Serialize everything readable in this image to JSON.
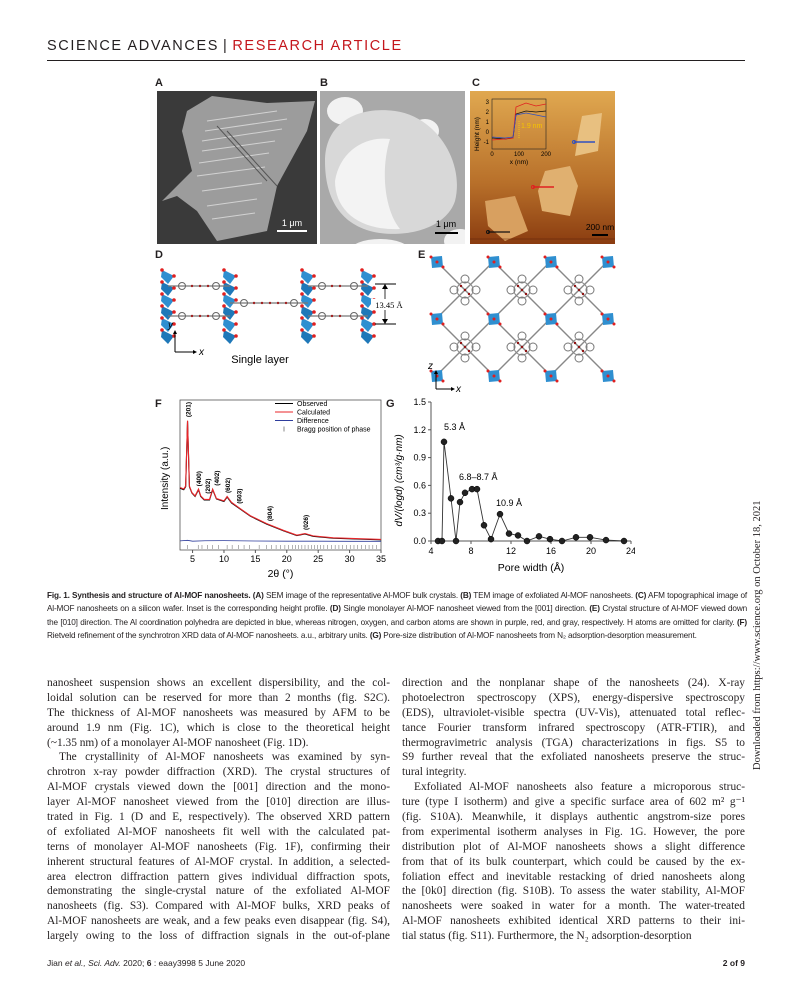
{
  "header": {
    "journal": "SCIENCE ADVANCES",
    "separator": "|",
    "section": "RESEARCH ARTICLE"
  },
  "colors": {
    "section_red": "#c4161c",
    "observed": "#000000",
    "calculated": "#e8262a",
    "difference": "#2e3d9c",
    "al_polyhedra": "#2f8fd0",
    "oxygen": "#e02020"
  },
  "figure": {
    "panel_labels": [
      "A",
      "B",
      "C",
      "D",
      "E",
      "F",
      "G"
    ],
    "a": {
      "scale_bar": "1 μm"
    },
    "b": {
      "scale_bar": "1 μm"
    },
    "c": {
      "scale_bar": "200 nm",
      "inset_ylabel": "Height (nm)",
      "inset_xlabel": "x (nm)",
      "inset_annotation": "1.9 nm",
      "inset_yticks": [
        "3",
        "2",
        "1",
        "0",
        "-1"
      ],
      "inset_xticks": [
        "0",
        "100",
        "200"
      ]
    },
    "d": {
      "dimension": "13.45 Å",
      "axis_y": "y",
      "axis_x": "x",
      "title": "Single layer"
    },
    "e": {
      "axis_z": "z",
      "axis_x": "x"
    }
  },
  "chart_data": [
    {
      "panel": "F",
      "type": "line",
      "xlabel": "2θ (°)",
      "ylabel": "Intensity (a.u.)",
      "xlim": [
        3,
        35
      ],
      "ylim": [
        -2,
        100
      ],
      "xticks": [
        5,
        10,
        15,
        20,
        25,
        30,
        35
      ],
      "legend": {
        "placement": "top-right",
        "entries": [
          "Observed",
          "Calculated",
          "Difference",
          "Bragg position of phase"
        ]
      },
      "series": [
        {
          "name": "Observed",
          "x": [
            3.0,
            3.6,
            3.9,
            4.2,
            4.5,
            4.9,
            5.4,
            5.95,
            6.3,
            6.85,
            7.7,
            8.2,
            8.8,
            10.0,
            10.5,
            11.2,
            12.3,
            14.2,
            16.8,
            19.5,
            21.6,
            22.9,
            24.2,
            27.4,
            35
          ],
          "y": [
            40,
            39,
            41,
            85.6,
            41,
            36.7,
            34.4,
            39,
            34.4,
            32,
            32,
            39,
            32.7,
            31,
            34,
            30,
            26.7,
            21,
            15.6,
            11,
            7.8,
            8.9,
            7.3,
            6,
            4.9
          ]
        },
        {
          "name": "Calculated",
          "x": [
            3.0,
            3.6,
            3.9,
            4.2,
            4.5,
            4.9,
            5.4,
            5.95,
            6.3,
            6.85,
            7.7,
            8.2,
            8.8,
            10.0,
            10.5,
            11.2,
            12.3,
            14.2,
            16.8,
            19.5,
            21.6,
            22.9,
            24.2,
            27.4,
            35
          ],
          "y": [
            40.5,
            39.5,
            41.5,
            86,
            41.5,
            37,
            34.8,
            39.4,
            34.8,
            32.4,
            32.4,
            39.4,
            33,
            31.4,
            34.4,
            30.4,
            27,
            21.3,
            15.9,
            11.3,
            8.1,
            9.2,
            7.6,
            6.3,
            5.2
          ]
        },
        {
          "name": "Difference",
          "x": [
            3.0,
            4.2,
            5,
            7,
            10,
            15,
            20,
            25,
            30,
            35
          ],
          "y": [
            4.2,
            4.6,
            4.0,
            4.3,
            4.4,
            4.1,
            4.0,
            4.0,
            3.9,
            3.9
          ]
        }
      ],
      "bragg_positions": [
        4.2,
        5.9,
        6.5,
        7.4,
        8.2,
        9.1,
        10.5,
        11.3,
        12.3,
        13.2,
        14.1,
        15.6,
        16.8,
        17.6,
        18.3,
        19.0,
        19.7,
        20.3,
        20.9,
        21.4,
        21.9,
        22.4,
        22.9,
        23.4,
        23.9,
        24.4,
        24.9,
        25.4,
        25.9,
        26.5,
        27.1,
        27.7,
        28.3,
        28.9,
        29.5,
        30.1,
        30.7,
        31.3,
        31.9,
        32.5,
        33.1,
        33.7,
        34.3
      ],
      "peak_labels": [
        {
          "text": "(201)",
          "x": 4.2
        },
        {
          "text": "(400)",
          "x": 5.9
        },
        {
          "text": "(202)",
          "x": 6.5
        },
        {
          "text": "(402)",
          "x": 8.2
        },
        {
          "text": "(602)",
          "x": 10.5
        },
        {
          "text": "(603)",
          "x": 12.3
        },
        {
          "text": "(804)",
          "x": 17.2
        },
        {
          "text": "(026)",
          "x": 22.9
        }
      ]
    },
    {
      "panel": "G",
      "type": "line",
      "xlabel": "Pore width (Å)",
      "ylabel": "dV/(logd) (cm³/g·nm)",
      "xlim": [
        4,
        24
      ],
      "ylim": [
        0,
        1.5
      ],
      "xticks": [
        4,
        8,
        12,
        16,
        20,
        24
      ],
      "yticks": [
        "0.0",
        "0.3",
        "0.6",
        "0.9",
        "1.2",
        "1.5"
      ],
      "x": [
        4.7,
        5.1,
        5.3,
        6.0,
        6.5,
        6.9,
        7.4,
        8.1,
        8.6,
        9.3,
        10.0,
        10.9,
        11.8,
        12.7,
        13.6,
        14.8,
        15.9,
        17.1,
        18.5,
        19.9,
        21.5,
        23.3
      ],
      "y": [
        0,
        0,
        1.07,
        0.46,
        0,
        0.42,
        0.52,
        0.56,
        0.56,
        0.17,
        0.02,
        0.29,
        0.08,
        0.06,
        0,
        0.05,
        0.02,
        0,
        0.04,
        0.04,
        0.01,
        0
      ],
      "annotations": [
        {
          "text": "5.3 Å",
          "x": 5.3,
          "y": 1.2
        },
        {
          "text": "6.8–8.7 Å",
          "x": 6.8,
          "y": 0.66
        },
        {
          "text": "10.9 Å",
          "x": 10.5,
          "y": 0.38
        }
      ]
    }
  ],
  "caption": [
    {
      "t": "Fig. 1. Synthesis and structure of Al-MOF nanosheets. ",
      "b": true
    },
    {
      "t": "(A)",
      "b": true
    },
    {
      "t": " SEM image of the representative Al-MOF bulk crystals. ",
      "b": false
    },
    {
      "t": "(B)",
      "b": true
    },
    {
      "t": " TEM image of exfoliated Al-MOF nanosheets. ",
      "b": false
    },
    {
      "t": "(C)",
      "b": true
    },
    {
      "t": " AFM topographical image of Al-MOF nanosheets on a silicon wafer. Inset is the corresponding height profile. ",
      "b": false
    },
    {
      "t": "(D)",
      "b": true
    },
    {
      "t": " Single monolayer Al-MOF nanosheet viewed from the [001] direction. ",
      "b": false
    },
    {
      "t": "(E)",
      "b": true
    },
    {
      "t": " Crystal structure of Al-MOF viewed down the [010] direction. The Al coordination polyhedra are depicted in blue, whereas nitrogen, oxygen, and carbon atoms are shown in purple, red, and gray, respectively. H atoms are omitted for clarity. ",
      "b": false
    },
    {
      "t": "(F)",
      "b": true
    },
    {
      "t": " Rietveld refinement of the synchrotron XRD data of Al-MOF nanosheets. a.u., arbitrary units. ",
      "b": false
    },
    {
      "t": "(G)",
      "b": true
    },
    {
      "t": " Pore-size distribution of Al-MOF nanosheets from N₂ adsorption-desorption measurement.",
      "b": false
    }
  ],
  "body": {
    "left": [
      {
        "t": "nanosheet suspension shows an excellent dispersibility, and the col-"
      },
      {
        "t": "loidal solution can be reserved for more than 2 months (fig. S2C)."
      },
      {
        "t": "The thickness of Al-MOF nanosheets was measured by AFM to be"
      },
      {
        "t": "around 1.9 nm (Fig. 1C), which is close to the theoretical height"
      },
      {
        "t": "(~1.35 nm) of a monolayer Al-MOF nanosheet (Fig. 1D).",
        "last": true
      },
      {
        "t": "The crystallinity of Al-MOF nanosheets was examined by syn-",
        "ind": true
      },
      {
        "t": "chrotron x-ray powder diffraction (XRD). The crystal structures of"
      },
      {
        "t": "Al-MOF crystals viewed down the [001] direction and the mono-"
      },
      {
        "t": "layer Al-MOF nanosheet viewed from the [010] direction are illus-"
      },
      {
        "t": "trated in Fig. 1 (D and E, respectively). The observed XRD pattern"
      },
      {
        "t": "of exfoliated Al-MOF nanosheets fit well with the calculated pat-"
      },
      {
        "t": "terns of monolayer Al-MOF nanosheets (Fig. 1F), confirming their"
      },
      {
        "t": "inherent structural features of Al-MOF crystal. In addition, a selected-"
      },
      {
        "t": "area electron diffraction pattern gives individual diffraction spots,"
      },
      {
        "t": "demonstrating the single-crystal nature of the exfoliated Al-MOF"
      },
      {
        "t": "nanosheets (fig. S3). Compared with Al-MOF bulks, XRD peaks of"
      },
      {
        "t": "Al-MOF nanosheets are weak, and a few peaks even disappear (fig. S4),"
      },
      {
        "t": "largely owing to the loss of diffraction signals in the out-of-plane"
      }
    ],
    "right": [
      {
        "t": "direction and the nonplanar shape of the nanosheets (24). X-ray"
      },
      {
        "t": "photoelectron spectroscopy (XPS), energy-dispersive spectroscopy"
      },
      {
        "t": "(EDS), ultraviolet-visible spectra (UV-Vis), attenuated total reflec-"
      },
      {
        "t": "tance Fourier transform infrared spectroscopy (ATR-FTIR), and"
      },
      {
        "t": "thermogravimetric analysis (TGA) characterizations in figs. S5 to"
      },
      {
        "t": "S9 further reveal that the exfoliated nanosheets preserve the struc-"
      },
      {
        "t": "tural integrity.",
        "last": true
      },
      {
        "t": "Exfoliated Al-MOF nanosheets also feature a microporous struc-",
        "ind": true
      },
      {
        "t": "ture (type I isotherm) and give a specific surface area of 602 m² g⁻¹"
      },
      {
        "t": "(fig. S10A). Meanwhile, it displays authentic angstrom-size pores"
      },
      {
        "t": "from experimental isotherm analyses in Fig. 1G. However, the pore"
      },
      {
        "t": "distribution plot of Al-MOF nanosheets shows a slight difference"
      },
      {
        "t": "from that of its bulk counterpart, which could be caused by the ex-"
      },
      {
        "t": "foliation effect and inevitable restacking of dried nanosheets along"
      },
      {
        "t": "the [0k0] direction (fig. S10B). To assess the water stability, Al-MOF"
      },
      {
        "t": "nanosheets were soaked in water for a month. The water-treated"
      },
      {
        "t": "Al-MOF nanosheets exhibited identical XRD patterns to their ini-"
      },
      {
        "t": "tial status (fig. S11). Furthermore, the N₂ adsorption-desorption",
        "last": true
      }
    ]
  },
  "footer": {
    "citation_authors": "Jian ",
    "citation_etal": "et al.",
    "citation_journal": ", Sci. Adv. ",
    "citation_rest": "2020; ",
    "citation_vol": "6",
    "citation_id": " : eaay3998    5 June 2020",
    "page": "2 of 9"
  },
  "side_note": "Downloaded from https://www.science.org on October 18, 2021"
}
